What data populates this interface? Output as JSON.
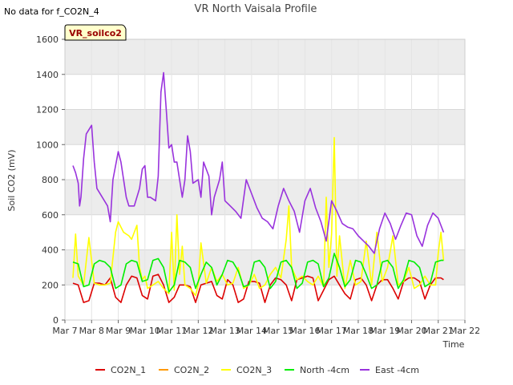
{
  "chart_data": {
    "type": "line",
    "title": "VR North Vaisala Profile",
    "no_data_note": "No data for f_CO2N_4",
    "badge": "VR_soilco2",
    "xlabel": "Time",
    "ylabel": "Soil CO2 (mV)",
    "ylim": [
      0,
      1600
    ],
    "yticks": [
      0,
      200,
      400,
      600,
      800,
      1000,
      1200,
      1400,
      1600
    ],
    "xlim": [
      7,
      22
    ],
    "xticks": [
      {
        "v": 7,
        "label": "Mar 7"
      },
      {
        "v": 8,
        "label": "Mar 8"
      },
      {
        "v": 9,
        "label": "Mar 9"
      },
      {
        "v": 10,
        "label": "Mar 10"
      },
      {
        "v": 11,
        "label": "Mar 11"
      },
      {
        "v": 12,
        "label": "Mar 12"
      },
      {
        "v": 13,
        "label": "Mar 13"
      },
      {
        "v": 14,
        "label": "Mar 14"
      },
      {
        "v": 15,
        "label": "Mar 15"
      },
      {
        "v": 16,
        "label": "Mar 16"
      },
      {
        "v": 17,
        "label": "Mar 17"
      },
      {
        "v": 18,
        "label": "Mar 18"
      },
      {
        "v": 19,
        "label": "Mar 19"
      },
      {
        "v": 20,
        "label": "Mar 20"
      },
      {
        "v": 21,
        "label": "Mar 21"
      },
      {
        "v": 22,
        "label": "Mar 22"
      }
    ],
    "grid": true,
    "legend_position": "bottom",
    "series": [
      {
        "name": "CO2N_1",
        "color": "#dd0000",
        "x": [
          7.3,
          7.5,
          7.7,
          7.9,
          8.1,
          8.3,
          8.5,
          8.7,
          8.9,
          9.1,
          9.3,
          9.5,
          9.7,
          9.9,
          10.1,
          10.3,
          10.5,
          10.7,
          10.9,
          11.1,
          11.3,
          11.5,
          11.7,
          11.9,
          12.1,
          12.3,
          12.5,
          12.7,
          12.9,
          13.1,
          13.3,
          13.5,
          13.7,
          13.9,
          14.1,
          14.3,
          14.5,
          14.7,
          14.9,
          15.1,
          15.3,
          15.5,
          15.7,
          15.9,
          16.1,
          16.3,
          16.5,
          16.7,
          16.9,
          17.1,
          17.3,
          17.5,
          17.7,
          17.9,
          18.1,
          18.3,
          18.5,
          18.7,
          18.9,
          19.1,
          19.3,
          19.5,
          19.7,
          19.9,
          20.1,
          20.3,
          20.5,
          20.7,
          20.9,
          21.1,
          21.2
        ],
        "y": [
          210,
          200,
          100,
          110,
          210,
          210,
          200,
          240,
          130,
          100,
          200,
          250,
          240,
          140,
          120,
          250,
          260,
          200,
          100,
          130,
          200,
          200,
          190,
          100,
          200,
          210,
          220,
          140,
          120,
          230,
          200,
          100,
          120,
          220,
          220,
          210,
          100,
          200,
          240,
          230,
          200,
          110,
          230,
          240,
          250,
          240,
          110,
          170,
          230,
          250,
          200,
          150,
          120,
          230,
          240,
          200,
          110,
          200,
          230,
          230,
          180,
          120,
          220,
          240,
          240,
          220,
          120,
          200,
          240,
          240,
          230
        ]
      },
      {
        "name": "CO2N_2",
        "color": "#ff9900",
        "x": [],
        "y": []
      },
      {
        "name": "CO2N_3",
        "color": "#ffff00",
        "x": [
          7.3,
          7.4,
          7.5,
          7.7,
          7.9,
          8.1,
          8.3,
          8.5,
          8.7,
          8.9,
          9.0,
          9.2,
          9.4,
          9.5,
          9.7,
          9.8,
          9.9,
          10.0,
          10.1,
          10.3,
          10.5,
          10.7,
          10.9,
          11.0,
          11.1,
          11.2,
          11.3,
          11.4,
          11.5,
          11.7,
          11.9,
          12.0,
          12.1,
          12.3,
          12.5,
          12.7,
          12.9,
          13.1,
          13.3,
          13.5,
          13.7,
          13.9,
          14.1,
          14.3,
          14.5,
          14.7,
          14.9,
          15.1,
          15.3,
          15.4,
          15.5,
          15.7,
          15.9,
          16.1,
          16.3,
          16.5,
          16.7,
          16.8,
          16.9,
          17.0,
          17.1,
          17.2,
          17.3,
          17.5,
          17.7,
          17.9,
          18.1,
          18.3,
          18.5,
          18.7,
          18.9,
          19.1,
          19.3,
          19.5,
          19.7,
          19.9,
          20.1,
          20.3,
          20.5,
          20.7,
          20.9,
          21.0,
          21.1,
          21.2
        ],
        "y": [
          240,
          490,
          250,
          200,
          470,
          210,
          200,
          200,
          210,
          500,
          560,
          500,
          480,
          460,
          540,
          300,
          230,
          250,
          180,
          200,
          220,
          180,
          150,
          500,
          170,
          600,
          260,
          420,
          200,
          180,
          140,
          200,
          440,
          210,
          300,
          220,
          260,
          200,
          210,
          300,
          180,
          200,
          260,
          180,
          200,
          260,
          300,
          240,
          460,
          650,
          300,
          230,
          250,
          220,
          200,
          250,
          190,
          700,
          300,
          490,
          1040,
          250,
          480,
          180,
          340,
          200,
          220,
          450,
          200,
          500,
          220,
          300,
          480,
          200,
          220,
          300,
          180,
          200,
          250,
          200,
          200,
          380,
          500,
          340
        ]
      },
      {
        "name": "North -4cm",
        "color": "#00ee00",
        "x": [
          7.3,
          7.5,
          7.7,
          7.9,
          8.1,
          8.3,
          8.5,
          8.7,
          8.9,
          9.1,
          9.3,
          9.5,
          9.7,
          9.9,
          10.1,
          10.3,
          10.5,
          10.7,
          10.9,
          11.1,
          11.3,
          11.5,
          11.7,
          11.9,
          12.1,
          12.3,
          12.5,
          12.7,
          12.9,
          13.1,
          13.3,
          13.5,
          13.7,
          13.9,
          14.1,
          14.3,
          14.5,
          14.7,
          14.9,
          15.1,
          15.3,
          15.5,
          15.7,
          15.9,
          16.1,
          16.3,
          16.5,
          16.7,
          16.9,
          17.1,
          17.3,
          17.5,
          17.7,
          17.9,
          18.1,
          18.3,
          18.5,
          18.7,
          18.9,
          19.1,
          19.3,
          19.5,
          19.7,
          19.9,
          20.1,
          20.3,
          20.5,
          20.7,
          20.9,
          21.1,
          21.2
        ],
        "y": [
          330,
          320,
          190,
          200,
          320,
          340,
          330,
          300,
          180,
          200,
          320,
          340,
          330,
          220,
          230,
          340,
          350,
          300,
          160,
          200,
          340,
          330,
          300,
          180,
          260,
          330,
          300,
          200,
          260,
          340,
          330,
          280,
          190,
          200,
          330,
          340,
          300,
          180,
          220,
          330,
          340,
          300,
          180,
          210,
          330,
          340,
          320,
          190,
          240,
          380,
          300,
          190,
          230,
          340,
          330,
          260,
          180,
          200,
          330,
          340,
          300,
          180,
          230,
          340,
          330,
          300,
          190,
          210,
          330,
          340,
          340
        ]
      },
      {
        "name": "East -4cm",
        "color": "#9933dd",
        "x": [
          7.3,
          7.4,
          7.5,
          7.55,
          7.6,
          7.7,
          7.8,
          8.0,
          8.1,
          8.2,
          8.4,
          8.6,
          8.7,
          8.8,
          9.0,
          9.1,
          9.3,
          9.4,
          9.6,
          9.8,
          9.9,
          10.0,
          10.1,
          10.2,
          10.4,
          10.5,
          10.6,
          10.7,
          10.8,
          10.9,
          11.0,
          11.1,
          11.2,
          11.4,
          11.5,
          11.6,
          11.7,
          11.8,
          12.0,
          12.1,
          12.2,
          12.4,
          12.5,
          12.6,
          12.8,
          12.9,
          13.0,
          13.2,
          13.4,
          13.6,
          13.8,
          14.0,
          14.2,
          14.4,
          14.6,
          14.8,
          15.0,
          15.2,
          15.4,
          15.6,
          15.8,
          16.0,
          16.2,
          16.4,
          16.6,
          16.8,
          17.0,
          17.2,
          17.4,
          17.6,
          17.8,
          18.0,
          18.2,
          18.4,
          18.6,
          18.8,
          19.0,
          19.2,
          19.4,
          19.6,
          19.8,
          20.0,
          20.2,
          20.4,
          20.6,
          20.8,
          21.0,
          21.2
        ],
        "y": [
          880,
          840,
          780,
          650,
          700,
          920,
          1060,
          1110,
          900,
          750,
          700,
          650,
          560,
          800,
          960,
          900,
          700,
          650,
          650,
          750,
          860,
          880,
          700,
          700,
          680,
          820,
          1300,
          1410,
          1200,
          980,
          1000,
          900,
          900,
          700,
          800,
          1050,
          960,
          780,
          800,
          700,
          900,
          820,
          600,
          700,
          800,
          900,
          680,
          650,
          620,
          580,
          800,
          720,
          640,
          580,
          560,
          520,
          650,
          750,
          680,
          620,
          500,
          680,
          750,
          640,
          560,
          450,
          680,
          620,
          550,
          530,
          520,
          480,
          450,
          420,
          380,
          520,
          610,
          550,
          460,
          540,
          610,
          600,
          480,
          420,
          540,
          610,
          580,
          500
        ]
      }
    ]
  }
}
